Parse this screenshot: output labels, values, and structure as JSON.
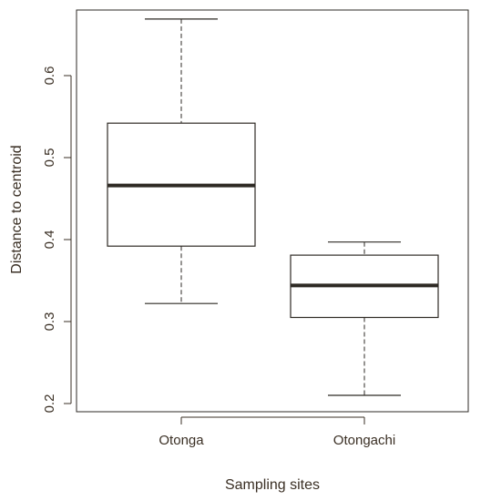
{
  "chart_data": {
    "type": "boxplot",
    "title": "",
    "xlabel": "Sampling sites",
    "ylabel": "Distance to centroid",
    "ylim": [
      0.19,
      0.68
    ],
    "yticks": [
      0.2,
      0.3,
      0.4,
      0.5,
      0.6
    ],
    "ytick_labels": [
      "0.2",
      "0.3",
      "0.4",
      "0.5",
      "0.6"
    ],
    "grid": false,
    "categories": [
      "Otonga",
      "Otongachi"
    ],
    "boxes": [
      {
        "category": "Otonga",
        "min": 0.322,
        "q1": 0.392,
        "median": 0.466,
        "q3": 0.542,
        "max": 0.669
      },
      {
        "category": "Otongachi",
        "min": 0.21,
        "q1": 0.305,
        "median": 0.344,
        "q3": 0.381,
        "max": 0.397
      }
    ],
    "colors": {
      "ink": "#2e2a24",
      "text": "#3a2f24",
      "background": "#ffffff"
    }
  }
}
